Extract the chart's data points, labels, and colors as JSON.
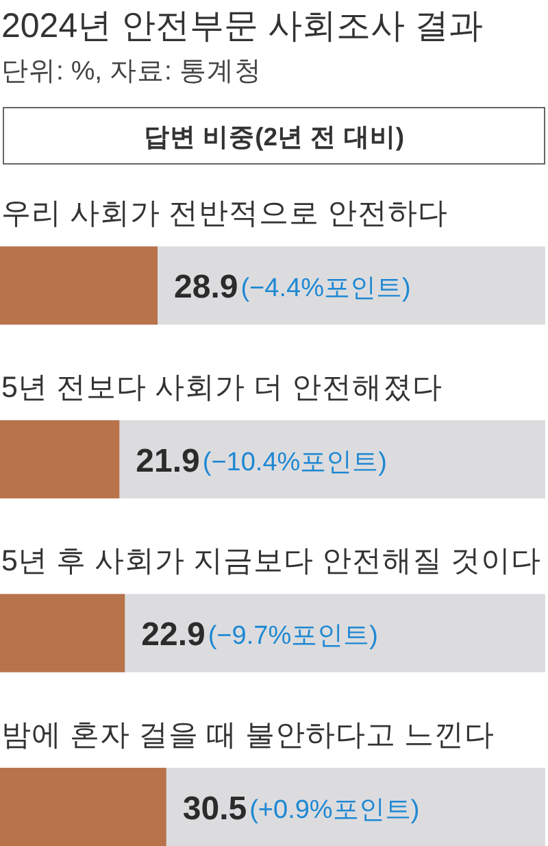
{
  "chart_data": {
    "type": "bar",
    "orientation": "horizontal",
    "title": "2024년 안전부문 사회조사 결과",
    "subtitle": "답변 비중(2년 전 대비)",
    "categories": [
      "우리 사회가 전반적으로 안전하다",
      "5년 전보다 사회가 더 안전해졌다",
      "5년 후 사회가 지금보다 안전해질 것이다",
      "밤에 혼자 걸을 때 불안하다고 느낀다"
    ],
    "values": [
      28.9,
      21.9,
      22.9,
      30.5
    ],
    "color": "#b8734b",
    "xlim": [
      0,
      100
    ],
    "data_labels": true,
    "tick_labels": "y",
    "annotations": [
      "단위: %, 자료: 통계청",
      "(−4.4%포인트)",
      "(−10.4%포인트)",
      "(−9.7%포인트)",
      "(+0.9%포인트)"
    ]
  }
}
